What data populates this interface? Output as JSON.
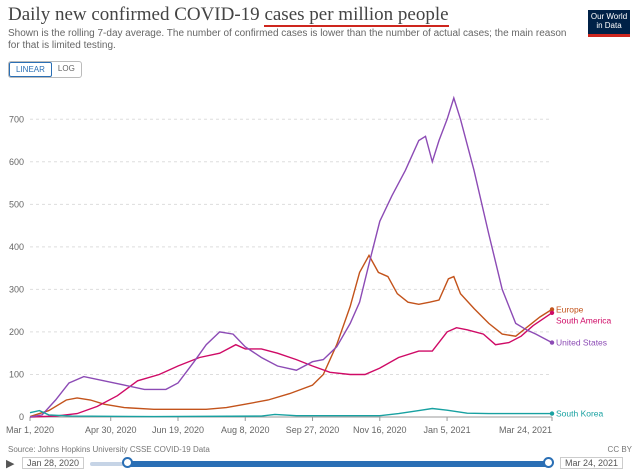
{
  "header": {
    "title_start": "Daily new confirmed COVID-19 ",
    "title_highlight": "cases per million people",
    "subtitle": "Shown is the rolling 7-day average. The number of confirmed cases is lower than the number of actual cases; the main reason for that is limited testing.",
    "logo_line1": "Our World",
    "logo_line2": "in Data"
  },
  "scale_toggle": {
    "linear": "LINEAR",
    "log": "LOG",
    "selected": "LINEAR"
  },
  "footer": {
    "source": "Source: Johns Hopkins University CSSE COVID-19 Data",
    "license": "CC BY"
  },
  "timeline": {
    "start": "Jan 28, 2020",
    "end": "Mar 24, 2021",
    "start_fraction": 0.08,
    "end_fraction": 1.0
  },
  "colors": {
    "accent": "#2a6fb5",
    "logo_bg": "#002147",
    "logo_red": "#ce261e"
  },
  "icons": {
    "play": "play-icon"
  },
  "chart_data": {
    "type": "line",
    "title": "",
    "xlabel": "",
    "ylabel": "",
    "ylim": [
      0,
      750
    ],
    "yticks": [
      0,
      100,
      200,
      300,
      400,
      500,
      600,
      700
    ],
    "xlim": [
      "2020-03-01",
      "2021-03-24"
    ],
    "xticks": [
      {
        "date": "2020-03-01",
        "label": "Mar 1, 2020"
      },
      {
        "date": "2020-04-30",
        "label": "Apr 30, 2020"
      },
      {
        "date": "2020-06-19",
        "label": "Jun 19, 2020"
      },
      {
        "date": "2020-08-08",
        "label": "Aug 8, 2020"
      },
      {
        "date": "2020-09-27",
        "label": "Sep 27, 2020"
      },
      {
        "date": "2020-11-16",
        "label": "Nov 16, 2020"
      },
      {
        "date": "2021-01-05",
        "label": "Jan 5, 2021"
      },
      {
        "date": "2021-03-24",
        "label": "Mar 24, 2021"
      }
    ],
    "grid": "horizontal dashed",
    "legend": "right, at line ends",
    "series": [
      {
        "name": "Europe",
        "color": "#c3531b",
        "points": [
          [
            "2020-03-01",
            1
          ],
          [
            "2020-03-15",
            15
          ],
          [
            "2020-03-28",
            40
          ],
          [
            "2020-04-05",
            45
          ],
          [
            "2020-04-15",
            40
          ],
          [
            "2020-04-25",
            30
          ],
          [
            "2020-05-10",
            22
          ],
          [
            "2020-06-01",
            18
          ],
          [
            "2020-06-20",
            18
          ],
          [
            "2020-07-10",
            18
          ],
          [
            "2020-07-25",
            22
          ],
          [
            "2020-08-08",
            30
          ],
          [
            "2020-08-25",
            40
          ],
          [
            "2020-09-10",
            55
          ],
          [
            "2020-09-27",
            75
          ],
          [
            "2020-10-05",
            100
          ],
          [
            "2020-10-15",
            170
          ],
          [
            "2020-10-25",
            260
          ],
          [
            "2020-11-01",
            340
          ],
          [
            "2020-11-08",
            380
          ],
          [
            "2020-11-15",
            340
          ],
          [
            "2020-11-22",
            330
          ],
          [
            "2020-11-29",
            290
          ],
          [
            "2020-12-07",
            270
          ],
          [
            "2020-12-15",
            265
          ],
          [
            "2020-12-23",
            270
          ],
          [
            "2020-12-30",
            275
          ],
          [
            "2021-01-06",
            325
          ],
          [
            "2021-01-10",
            330
          ],
          [
            "2021-01-15",
            290
          ],
          [
            "2021-01-25",
            255
          ],
          [
            "2021-02-05",
            220
          ],
          [
            "2021-02-15",
            195
          ],
          [
            "2021-02-25",
            190
          ],
          [
            "2021-03-05",
            210
          ],
          [
            "2021-03-15",
            235
          ],
          [
            "2021-03-24",
            253
          ]
        ]
      },
      {
        "name": "South America",
        "color": "#cf0a66",
        "points": [
          [
            "2020-03-01",
            0
          ],
          [
            "2020-03-20",
            2
          ],
          [
            "2020-04-05",
            8
          ],
          [
            "2020-04-20",
            25
          ],
          [
            "2020-05-05",
            50
          ],
          [
            "2020-05-20",
            85
          ],
          [
            "2020-06-05",
            100
          ],
          [
            "2020-06-19",
            120
          ],
          [
            "2020-07-05",
            140
          ],
          [
            "2020-07-20",
            150
          ],
          [
            "2020-08-01",
            170
          ],
          [
            "2020-08-08",
            160
          ],
          [
            "2020-08-20",
            160
          ],
          [
            "2020-09-01",
            150
          ],
          [
            "2020-09-15",
            135
          ],
          [
            "2020-09-27",
            120
          ],
          [
            "2020-10-10",
            105
          ],
          [
            "2020-10-25",
            100
          ],
          [
            "2020-11-05",
            100
          ],
          [
            "2020-11-16",
            115
          ],
          [
            "2020-11-30",
            140
          ],
          [
            "2020-12-15",
            155
          ],
          [
            "2020-12-25",
            155
          ],
          [
            "2021-01-05",
            200
          ],
          [
            "2021-01-12",
            210
          ],
          [
            "2021-01-20",
            205
          ],
          [
            "2021-02-01",
            195
          ],
          [
            "2021-02-10",
            170
          ],
          [
            "2021-02-20",
            175
          ],
          [
            "2021-03-01",
            190
          ],
          [
            "2021-03-10",
            215
          ],
          [
            "2021-03-24",
            245
          ]
        ]
      },
      {
        "name": "United States",
        "color": "#8c4bb5",
        "points": [
          [
            "2020-03-01",
            0
          ],
          [
            "2020-03-10",
            5
          ],
          [
            "2020-03-20",
            40
          ],
          [
            "2020-03-30",
            80
          ],
          [
            "2020-04-10",
            95
          ],
          [
            "2020-04-25",
            85
          ],
          [
            "2020-05-10",
            75
          ],
          [
            "2020-05-25",
            65
          ],
          [
            "2020-06-10",
            65
          ],
          [
            "2020-06-19",
            80
          ],
          [
            "2020-07-01",
            130
          ],
          [
            "2020-07-10",
            170
          ],
          [
            "2020-07-20",
            200
          ],
          [
            "2020-07-30",
            195
          ],
          [
            "2020-08-08",
            165
          ],
          [
            "2020-08-20",
            140
          ],
          [
            "2020-09-01",
            120
          ],
          [
            "2020-09-15",
            110
          ],
          [
            "2020-09-27",
            130
          ],
          [
            "2020-10-05",
            135
          ],
          [
            "2020-10-15",
            165
          ],
          [
            "2020-10-25",
            220
          ],
          [
            "2020-11-01",
            270
          ],
          [
            "2020-11-08",
            360
          ],
          [
            "2020-11-16",
            460
          ],
          [
            "2020-11-25",
            520
          ],
          [
            "2020-12-05",
            580
          ],
          [
            "2020-12-15",
            650
          ],
          [
            "2020-12-20",
            660
          ],
          [
            "2020-12-25",
            600
          ],
          [
            "2020-12-30",
            650
          ],
          [
            "2021-01-05",
            700
          ],
          [
            "2021-01-10",
            750
          ],
          [
            "2021-01-15",
            700
          ],
          [
            "2021-01-25",
            580
          ],
          [
            "2021-02-05",
            430
          ],
          [
            "2021-02-15",
            300
          ],
          [
            "2021-02-25",
            220
          ],
          [
            "2021-03-05",
            205
          ],
          [
            "2021-03-12",
            195
          ],
          [
            "2021-03-24",
            175
          ]
        ]
      },
      {
        "name": "South Korea",
        "color": "#18a1a1",
        "points": [
          [
            "2020-03-01",
            10
          ],
          [
            "2020-03-08",
            15
          ],
          [
            "2020-03-15",
            5
          ],
          [
            "2020-04-01",
            2
          ],
          [
            "2020-06-01",
            1
          ],
          [
            "2020-08-20",
            2
          ],
          [
            "2020-08-30",
            6
          ],
          [
            "2020-09-15",
            3
          ],
          [
            "2020-11-16",
            3
          ],
          [
            "2020-11-30",
            8
          ],
          [
            "2020-12-15",
            15
          ],
          [
            "2020-12-25",
            20
          ],
          [
            "2021-01-05",
            16
          ],
          [
            "2021-01-20",
            9
          ],
          [
            "2021-02-05",
            8
          ],
          [
            "2021-03-24",
            8
          ]
        ]
      }
    ]
  }
}
